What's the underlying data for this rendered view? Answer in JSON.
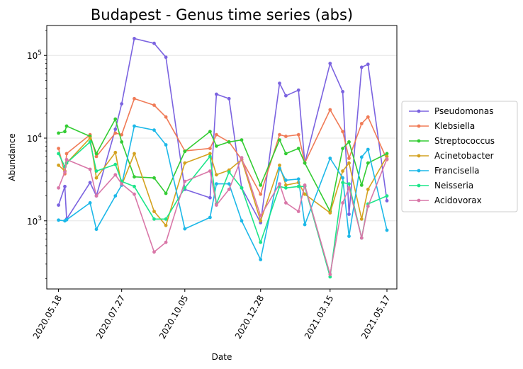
{
  "chart_data": {
    "type": "line",
    "title": "Budapest - Genus time series (abs)",
    "xlabel": "Date",
    "ylabel": "Abundance",
    "yscale": "log",
    "ylim": [
      150,
      230000
    ],
    "xlim": [
      "2020-05-05",
      "2021-05-28"
    ],
    "grid": "horizontal",
    "legend_position": "right",
    "x_ticks": [
      "2020.05.18",
      "2020.07.27",
      "2020.10.05",
      "2020.12.28",
      "2021.03.15",
      "2021.05.17"
    ],
    "y_ticks": [
      {
        "value": 1000,
        "label": "10³",
        "base": "10",
        "exp": "3"
      },
      {
        "value": 10000,
        "label": "10⁴",
        "base": "10",
        "exp": "4"
      },
      {
        "value": 100000,
        "label": "10⁵",
        "base": "10",
        "exp": "5"
      }
    ],
    "x": [
      "2020-05-18",
      "2020-05-25",
      "2020-05-27",
      "2020-06-01",
      "2020-06-22",
      "2020-06-29",
      "2020-07-20",
      "2020-07-27",
      "2020-08-03",
      "2020-08-10",
      "2020-08-17",
      "2020-09-01",
      "2020-09-14",
      "2020-09-21",
      "2020-10-05",
      "2020-10-05",
      "2020-11-02",
      "2020-11-09",
      "2020-11-23",
      "2020-12-07",
      "2020-12-28",
      "2021-01-18",
      "2021-01-25",
      "2021-02-08",
      "2021-02-15",
      "2021-03-15",
      "2021-03-29",
      "2021-04-05",
      "2021-04-19",
      "2021-04-26",
      "2021-05-17"
    ],
    "series": [
      {
        "name": "Pseudomonas",
        "color": "#7b63e0",
        "values": [
          1550,
          2600,
          1050,
          null,
          2900,
          2000,
          12800,
          26000,
          null,
          160000,
          null,
          140000,
          95000,
          null,
          2400,
          null,
          1900,
          34000,
          30000,
          2500,
          950,
          46000,
          32500,
          38000,
          5000,
          80000,
          36500,
          1200,
          72000,
          78000,
          1750
        ]
      },
      {
        "name": "Klebsiella",
        "color": "#f07b57",
        "values": [
          7500,
          3700,
          6500,
          null,
          11000,
          6000,
          11500,
          11000,
          null,
          30000,
          null,
          25000,
          18000,
          null,
          7000,
          null,
          7500,
          11000,
          9000,
          5500,
          2100,
          11000,
          10500,
          11000,
          5000,
          22000,
          12000,
          5700,
          15000,
          18000,
          5500
        ]
      },
      {
        "name": "Streptococcus",
        "color": "#33cc33",
        "values": [
          11500,
          12000,
          14000,
          null,
          10500,
          6500,
          17000,
          9000,
          null,
          3400,
          null,
          3300,
          2150,
          null,
          6900,
          null,
          12000,
          8000,
          9000,
          9500,
          2700,
          9500,
          6500,
          7500,
          5000,
          1300,
          7500,
          9000,
          2700,
          5000,
          6500
        ]
      },
      {
        "name": "Acinetobacter",
        "color": "#d4a220",
        "values": [
          4700,
          4000,
          5000,
          null,
          10000,
          3300,
          6700,
          2700,
          null,
          6500,
          null,
          1300,
          880,
          null,
          5000,
          null,
          6500,
          3600,
          4100,
          5500,
          1000,
          4700,
          2700,
          2900,
          2100,
          1250,
          4000,
          5000,
          1050,
          2400,
          6000
        ]
      },
      {
        "name": "Francisella",
        "color": "#1cb8e8",
        "values": [
          1020,
          1000,
          1030,
          null,
          1650,
          790,
          2000,
          2700,
          null,
          14000,
          null,
          12500,
          8300,
          null,
          800,
          null,
          1100,
          2800,
          2800,
          1000,
          340,
          4300,
          3100,
          3200,
          900,
          5700,
          3300,
          650,
          5900,
          7300,
          770
        ]
      },
      {
        "name": "Neisseria",
        "color": "#1de58a",
        "values": [
          6500,
          4500,
          5000,
          null,
          9000,
          4000,
          4800,
          3000,
          null,
          2600,
          null,
          1050,
          1050,
          null,
          2500,
          null,
          6000,
          1600,
          3900,
          2500,
          550,
          2600,
          2500,
          2600,
          2600,
          210,
          2900,
          2800,
          620,
          1600,
          2000
        ]
      },
      {
        "name": "Acidovorax",
        "color": "#d977a8",
        "values": [
          2500,
          3900,
          5500,
          null,
          4200,
          2000,
          3600,
          2800,
          null,
          2100,
          null,
          420,
          550,
          null,
          3000,
          null,
          4000,
          1550,
          2400,
          5800,
          1150,
          2800,
          1650,
          1300,
          2700,
          225,
          1650,
          2500,
          620,
          1500,
          5600
        ]
      }
    ]
  }
}
